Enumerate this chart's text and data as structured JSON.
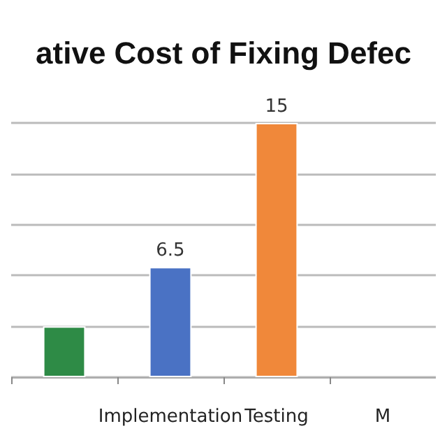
{
  "chart_data": {
    "type": "bar",
    "title": "ative Cost of Fixing Defec",
    "categories": [
      null,
      "Implementation",
      "Testing",
      "M"
    ],
    "values": [
      3,
      6.5,
      15,
      null
    ],
    "value_labels": [
      null,
      "6.5",
      "15",
      null
    ],
    "colors": [
      "#2e8b46",
      "#4a72c4",
      "#f0883a",
      null
    ],
    "tick_labels": "x",
    "grid": "y"
  }
}
